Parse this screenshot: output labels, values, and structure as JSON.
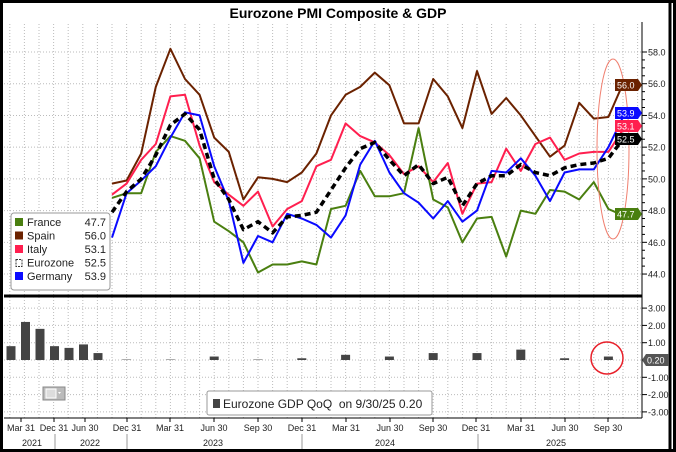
{
  "chart_data": [
    {
      "type": "line",
      "title": "Eurozone PMI Composite & GDP",
      "x": [
        "2022-11",
        "2022-12",
        "2023-01",
        "2023-02",
        "2023-03",
        "2023-04",
        "2023-05",
        "2023-06",
        "2023-07",
        "2023-08",
        "2023-09",
        "2023-10",
        "2023-11",
        "2023-12",
        "2024-01",
        "2024-02",
        "2024-03",
        "2024-04",
        "2024-05",
        "2024-06",
        "2024-07",
        "2024-08",
        "2024-09",
        "2024-10",
        "2024-11",
        "2024-12",
        "2025-01",
        "2025-02",
        "2025-03",
        "2025-04",
        "2025-05",
        "2025-06",
        "2025-07",
        "2025-08",
        "2025-09",
        "2025-10"
      ],
      "ylim": [
        43,
        59.5
      ],
      "yticks": [
        "44.0",
        "46.0",
        "48.0",
        "50.0",
        "52.0",
        "54.0",
        "56.0",
        "58.0"
      ],
      "grid": true,
      "legend_position": "bottom-left",
      "series": [
        {
          "name": "France",
          "last": "47.7",
          "color": "#4a7f10",
          "dashed": false,
          "values": [
            48.8,
            49.1,
            49.1,
            51.7,
            52.7,
            52.4,
            51.3,
            47.3,
            46.7,
            46.0,
            44.1,
            44.6,
            44.6,
            44.8,
            44.6,
            48.1,
            48.3,
            50.5,
            48.9,
            48.9,
            49.1,
            53.2,
            48.7,
            48.2,
            46.0,
            47.5,
            47.6,
            45.1,
            48.0,
            47.8,
            49.3,
            49.2,
            48.7,
            49.8,
            48.1,
            47.7
          ]
        },
        {
          "name": "Spain",
          "last": "56.0",
          "color": "#6b2200",
          "dashed": false,
          "values": [
            49.7,
            49.9,
            51.6,
            55.8,
            58.2,
            56.3,
            55.3,
            52.6,
            51.7,
            48.7,
            50.1,
            50.0,
            49.8,
            50.4,
            51.6,
            54.0,
            55.3,
            55.8,
            56.7,
            55.9,
            53.5,
            53.5,
            56.3,
            55.2,
            53.2,
            56.8,
            54.1,
            55.1,
            54.0,
            52.7,
            51.4,
            52.1,
            54.8,
            53.8,
            53.9,
            56.0
          ]
        },
        {
          "name": "Italy",
          "last": "53.1",
          "color": "#ff1f4f",
          "dashed": false,
          "values": [
            49.0,
            49.7,
            51.2,
            52.2,
            55.2,
            55.3,
            52.1,
            49.8,
            49.0,
            48.3,
            49.2,
            47.0,
            48.1,
            48.6,
            50.8,
            51.2,
            53.5,
            52.7,
            52.3,
            51.5,
            50.3,
            50.8,
            49.8,
            51.0,
            47.8,
            49.7,
            49.8,
            51.9,
            50.5,
            52.2,
            52.6,
            51.2,
            51.6,
            51.7,
            51.7,
            53.1
          ]
        },
        {
          "name": "Eurozone",
          "last": "52.5",
          "color": "#000000",
          "dashed": true,
          "values": [
            47.9,
            49.2,
            50.0,
            51.5,
            53.4,
            54.1,
            53.1,
            50.0,
            48.7,
            46.8,
            47.3,
            46.6,
            47.6,
            47.7,
            47.9,
            49.3,
            50.7,
            51.9,
            52.3,
            51.2,
            50.2,
            50.9,
            49.7,
            50.1,
            48.3,
            49.7,
            50.2,
            50.2,
            50.9,
            50.4,
            50.2,
            50.7,
            50.9,
            51.0,
            51.3,
            52.5
          ]
        },
        {
          "name": "Germany",
          "last": "53.9",
          "color": "#0a0aff",
          "dashed": false,
          "values": [
            46.3,
            49.1,
            49.9,
            50.8,
            52.6,
            54.2,
            54.0,
            50.8,
            48.6,
            44.7,
            46.4,
            46.0,
            47.8,
            47.5,
            47.1,
            46.3,
            47.7,
            50.9,
            52.4,
            50.4,
            49.1,
            48.5,
            47.5,
            48.6,
            47.3,
            48.0,
            50.5,
            50.4,
            51.3,
            50.2,
            48.6,
            50.4,
            50.6,
            50.6,
            52.0,
            53.9
          ]
        }
      ]
    },
    {
      "type": "bar",
      "legend": "Eurozone GDP QoQ  on 9/30/25 0.20",
      "last_label": "0.20",
      "color": "#444444",
      "ylim": [
        -3.5,
        3.5
      ],
      "yticks": [
        "3.00",
        "2.00",
        "1.00",
        "-1.00",
        "-2.00",
        "-3.00"
      ],
      "categories": [
        "2021-03",
        "2021-06",
        "2021-09",
        "2021-12",
        "2022-03",
        "2022-06",
        "2022-09",
        "2022-12",
        "2023-03",
        "2023-06",
        "2023-09",
        "2023-12",
        "2024-03",
        "2024-06",
        "2024-09",
        "2024-12",
        "2025-03",
        "2025-06",
        "2025-09"
      ],
      "values": [
        0.8,
        2.2,
        1.8,
        0.8,
        0.7,
        0.9,
        0.4,
        0.0,
        0.0,
        0.2,
        0.0,
        0.1,
        0.3,
        0.2,
        0.4,
        0.4,
        0.6,
        0.1,
        0.2
      ]
    }
  ],
  "xaxis": {
    "ticks": [
      "Mar 31",
      "Dec 31",
      "Jun 30",
      "Dec 31",
      "Mar 31",
      "Jun 30",
      "Sep 30",
      "Dec 31",
      "Mar 31",
      "Jun 30",
      "Sep 30",
      "Dec 31",
      "Mar 31",
      "Jun 30",
      "Sep 30"
    ],
    "years": [
      "2021",
      "2022",
      "2023",
      "2024",
      "2025"
    ]
  },
  "annotations": {
    "highlight_color": "#e8202a"
  }
}
